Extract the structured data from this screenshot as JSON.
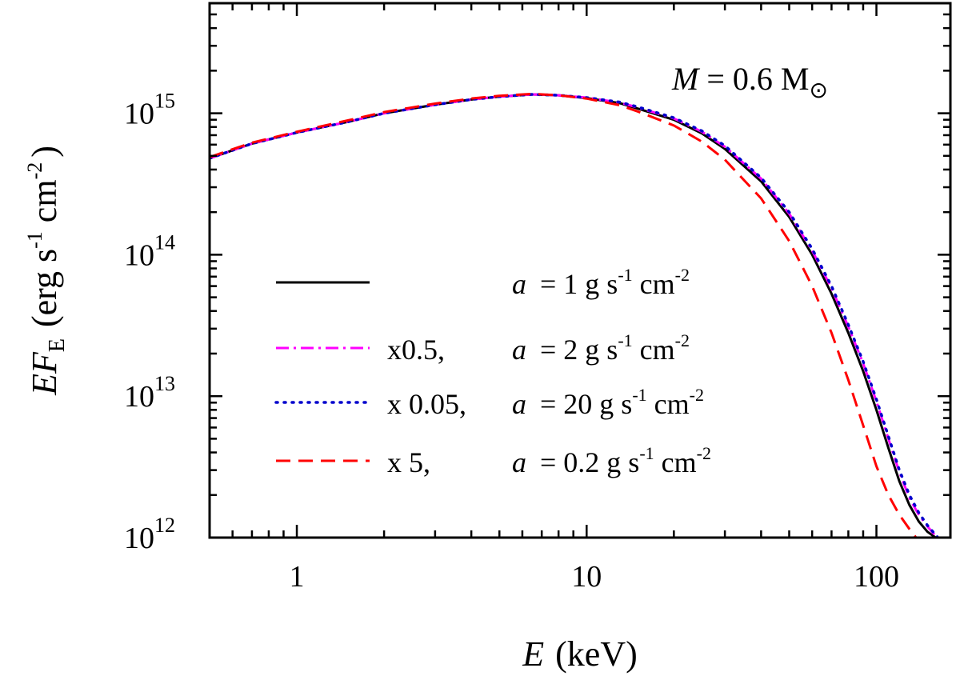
{
  "chart_data": {
    "type": "line",
    "x_scale": "log",
    "y_scale": "log",
    "xlim": [
      0.5,
      180
    ],
    "ylim": [
      1000000000000.0,
      6000000000000000.0
    ],
    "x_ticks": [
      {
        "value": 1,
        "label": "1"
      },
      {
        "value": 10,
        "label": "10"
      },
      {
        "value": 100,
        "label": "100"
      }
    ],
    "y_ticks": [
      {
        "value": 1000000000000.0,
        "base": "10",
        "exp": "12"
      },
      {
        "value": 10000000000000.0,
        "base": "10",
        "exp": "13"
      },
      {
        "value": 100000000000000.0,
        "base": "10",
        "exp": "14"
      },
      {
        "value": 1000000000000000.0,
        "base": "10",
        "exp": "15"
      }
    ],
    "xlabel": {
      "var": "E",
      "unit": "(keV)"
    },
    "ylabel": {
      "var": "EF",
      "sub": "E",
      "unit_open": "(erg s",
      "unit_sup1": "-1",
      "unit_mid": " cm",
      "unit_sup2": "-2",
      "unit_close": ")"
    },
    "annotation": {
      "var": "M",
      "text": " = 0.6 M",
      "sub": "⊙"
    },
    "grid": false,
    "legend_position": "center-left",
    "series": [
      {
        "name": "a = 1 g s-1 cm-2",
        "legend": {
          "scale": "",
          "var": "a",
          "pre": " = 1 g s",
          "sup1": "-1",
          "mid": " cm",
          "sup2": "-2"
        },
        "color": "#000000",
        "dash": "solid",
        "x": [
          0.5,
          0.7,
          1,
          1.5,
          2,
          3,
          4,
          5,
          6.5,
          8,
          10,
          13,
          15,
          20,
          25,
          30,
          40,
          50,
          60,
          70,
          80,
          90,
          100,
          110,
          120,
          130,
          140,
          150,
          160
        ],
        "y": [
          480000000000000.0,
          610000000000000.0,
          730000000000000.0,
          870000000000000.0,
          1000000000000000.0,
          1150000000000000.0,
          1250000000000000.0,
          1310000000000000.0,
          1360000000000000.0,
          1340000000000000.0,
          1280000000000000.0,
          1180000000000000.0,
          1080000000000000.0,
          900000000000000.0,
          720000000000000.0,
          560000000000000.0,
          330000000000000.0,
          185000000000000.0,
          100000000000000.0,
          53000000000000.0,
          28000000000000.0,
          15000000000000.0,
          8000000000000.0,
          4300000000000.0,
          2500000000000.0,
          1700000000000.0,
          1300000000000.0,
          1100000000000.0,
          1000000000000.0
        ]
      },
      {
        "name": "×0.5, a = 2 g s-1 cm-2",
        "legend": {
          "scale": "x0.5,",
          "var": "a",
          "pre": " = 2 g s",
          "sup1": "-1",
          "mid": " cm",
          "sup2": "-2"
        },
        "color": "#ff00ff",
        "dash": "dashdot",
        "x": [
          0.5,
          0.7,
          1,
          1.5,
          2,
          3,
          4,
          5,
          6.5,
          8,
          10,
          13,
          15,
          20,
          25,
          30,
          40,
          50,
          60,
          70,
          80,
          90,
          100,
          110,
          120,
          130,
          140,
          150,
          162
        ],
        "y": [
          480000000000000.0,
          610000000000000.0,
          730000000000000.0,
          870000000000000.0,
          1000000000000000.0,
          1150000000000000.0,
          1250000000000000.0,
          1310000000000000.0,
          1360000000000000.0,
          1340000000000000.0,
          1290000000000000.0,
          1190000000000000.0,
          1100000000000000.0,
          920000000000000.0,
          740000000000000.0,
          580000000000000.0,
          345000000000000.0,
          195000000000000.0,
          107000000000000.0,
          58000000000000.0,
          31000000000000.0,
          17000000000000.0,
          9200000000000.0,
          5000000000000.0,
          2900000000000.0,
          1900000000000.0,
          1450000000000.0,
          1200000000000.0,
          1000000000000.0
        ]
      },
      {
        "name": "×0.05, a = 20 g s-1 cm-2",
        "legend": {
          "scale": "x 0.05,",
          "var": "a",
          "pre": " = 20 g s",
          "sup1": "-1",
          "mid": " cm",
          "sup2": "-2"
        },
        "color": "#0000cc",
        "dash": "dotted",
        "x": [
          0.5,
          0.7,
          1,
          1.5,
          2,
          3,
          4,
          5,
          6.5,
          8,
          10,
          13,
          15,
          20,
          25,
          30,
          40,
          50,
          60,
          70,
          80,
          90,
          100,
          110,
          120,
          130,
          140,
          150,
          163
        ],
        "y": [
          480000000000000.0,
          610000000000000.0,
          730000000000000.0,
          870000000000000.0,
          1000000000000000.0,
          1150000000000000.0,
          1250000000000000.0,
          1310000000000000.0,
          1360000000000000.0,
          1340000000000000.0,
          1290000000000000.0,
          1200000000000000.0,
          1110000000000000.0,
          930000000000000.0,
          750000000000000.0,
          590000000000000.0,
          350000000000000.0,
          200000000000000.0,
          110000000000000.0,
          60000000000000.0,
          32000000000000.0,
          17500000000000.0,
          9500000000000.0,
          5200000000000.0,
          3000000000000.0,
          2000000000000.0,
          1500000000000.0,
          1220000000000.0,
          1000000000000.0
        ]
      },
      {
        "name": "×5, a = 0.2 g s-1 cm-2",
        "legend": {
          "scale": "x 5,",
          "var": "a",
          "pre": " = 0.2 g s",
          "sup1": "-1",
          "mid": " cm",
          "sup2": "-2"
        },
        "color": "#ff0000",
        "dash": "dashed",
        "x": [
          0.5,
          0.7,
          1,
          1.5,
          2,
          3,
          4,
          5,
          6.5,
          8,
          10,
          13,
          15,
          20,
          25,
          30,
          40,
          50,
          60,
          70,
          80,
          90,
          100,
          110,
          120,
          130,
          137
        ],
        "y": [
          490000000000000.0,
          620000000000000.0,
          740000000000000.0,
          890000000000000.0,
          1020000000000000.0,
          1170000000000000.0,
          1270000000000000.0,
          1330000000000000.0,
          1370000000000000.0,
          1340000000000000.0,
          1270000000000000.0,
          1140000000000000.0,
          1030000000000000.0,
          820000000000000.0,
          630000000000000.0,
          470000000000000.0,
          250000000000000.0,
          125000000000000.0,
          60000000000000.0,
          28000000000000.0,
          13000000000000.0,
          6200000000000.0,
          3200000000000.0,
          2000000000000.0,
          1450000000000.0,
          1150000000000.0,
          1000000000000.0
        ]
      }
    ]
  }
}
